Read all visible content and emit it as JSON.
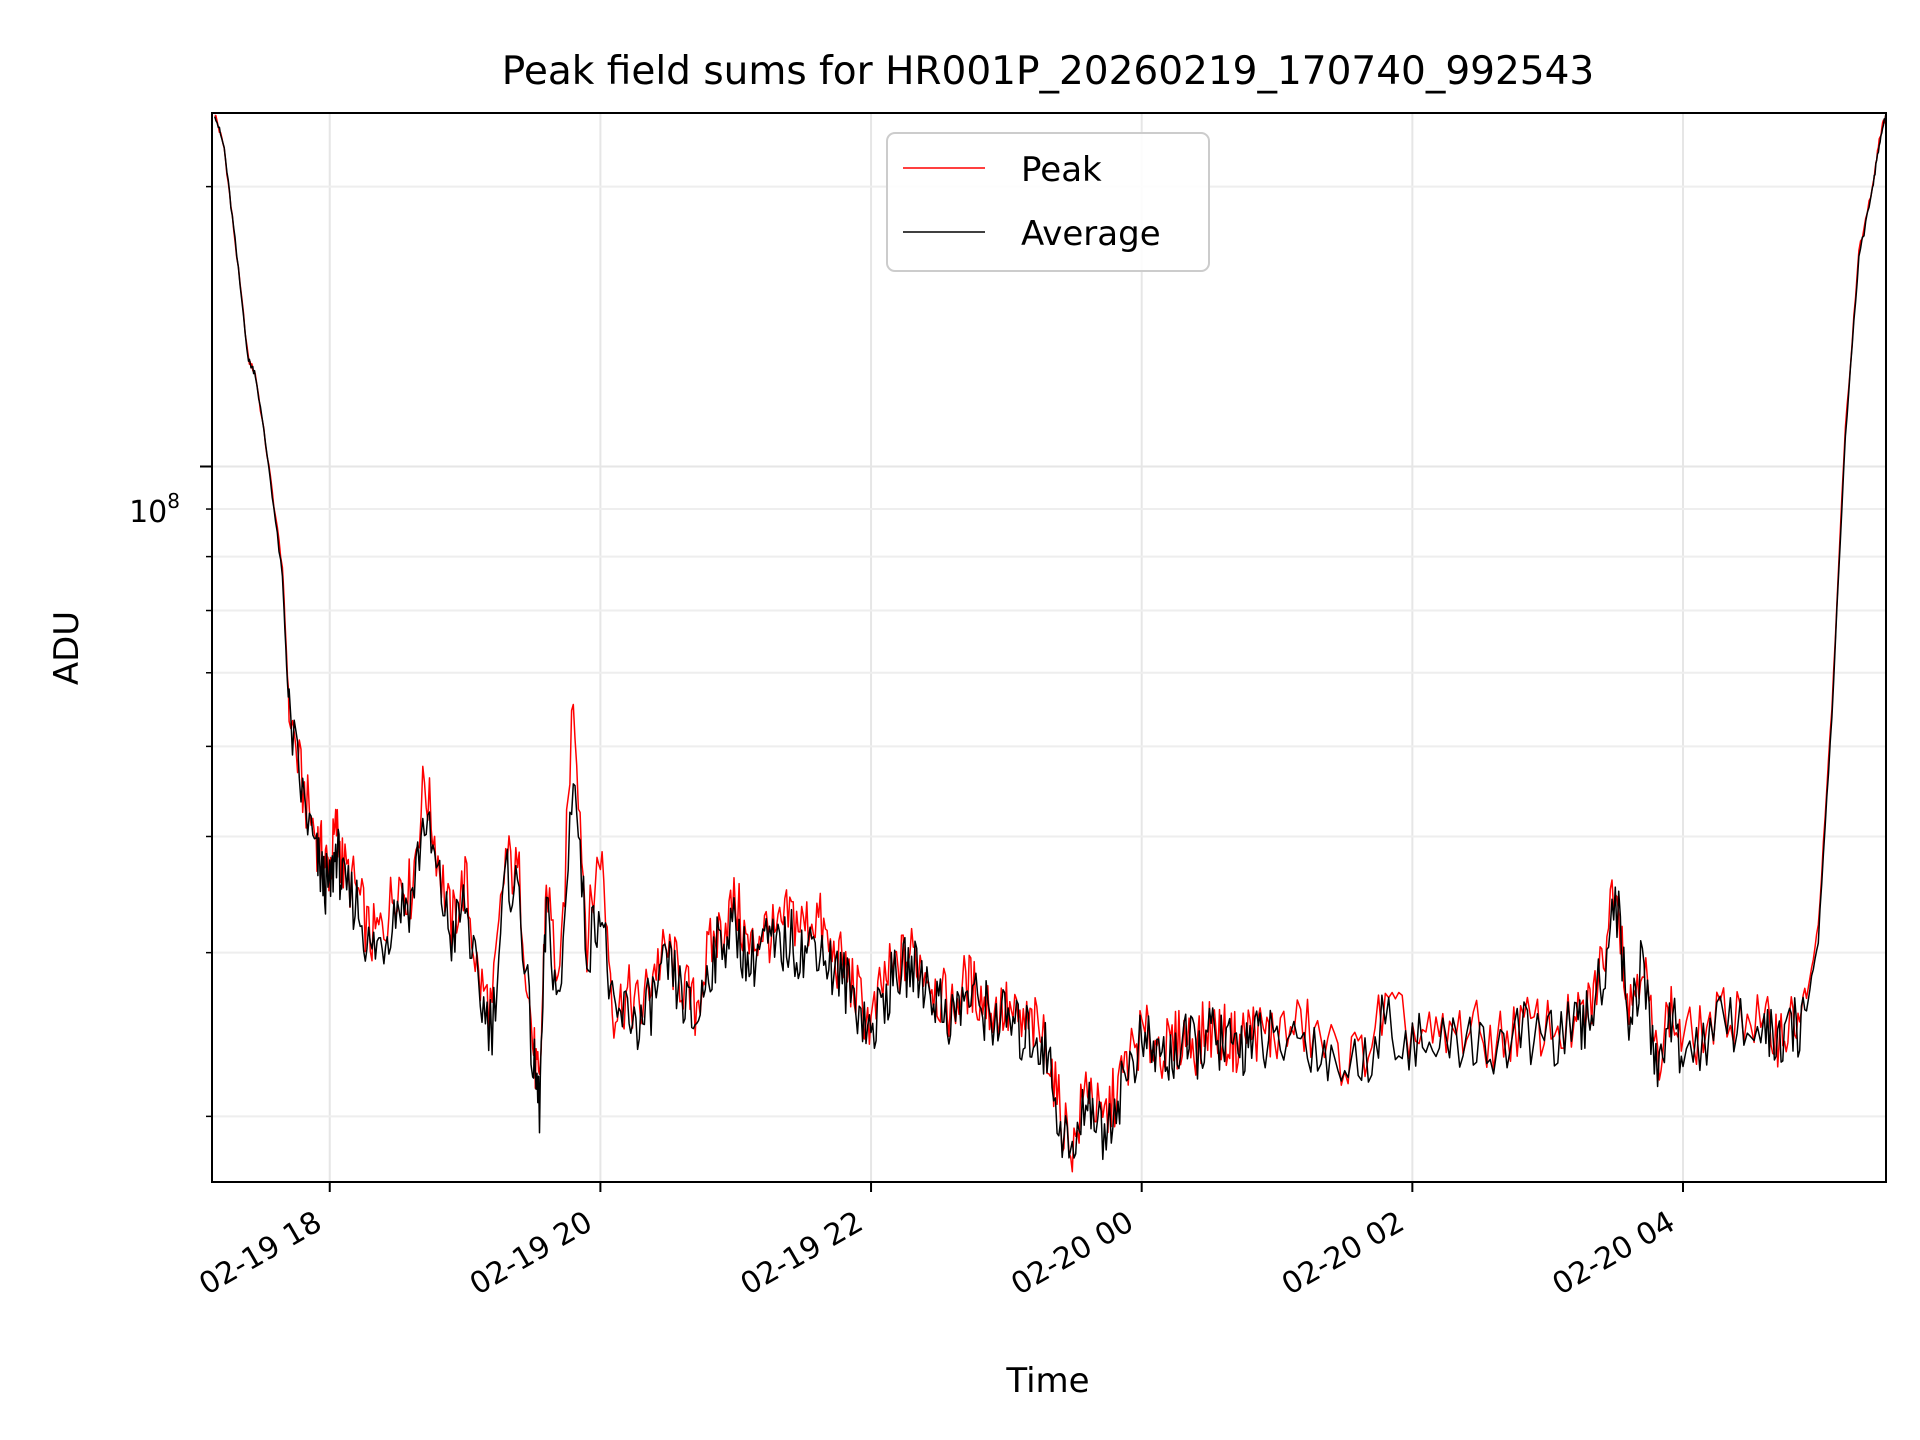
{
  "chart_data": {
    "type": "line",
    "title": "Peak field sums for HR001P_20260219_170740_992543",
    "xlabel": "Time",
    "ylabel": "ADU",
    "yscale": "log",
    "ylim": [
      17000000,
      240000000
    ],
    "xlim_hours": [
      -0.87,
      11.5
    ],
    "grid": true,
    "legend_position": "upper center",
    "x_tick_labels": [
      "02-19 18",
      "02-19 20",
      "02-19 22",
      "02-20 00",
      "02-20 02",
      "02-20 04"
    ],
    "x_tick_hours": [
      0,
      2,
      4,
      6,
      8,
      10
    ],
    "y_major_tick": {
      "value": 100000000,
      "label_base": "10",
      "label_exp": "8"
    },
    "y_minor_ticks": [
      20000000,
      30000000,
      40000000,
      50000000,
      60000000,
      70000000,
      80000000,
      90000000,
      200000000
    ],
    "series": [
      {
        "name": "Peak",
        "color": "#ff0000",
        "x_hours": [
          -0.85,
          -0.78,
          -0.7,
          -0.6,
          -0.55,
          -0.45,
          -0.35,
          -0.3,
          -0.2,
          -0.1,
          -0.05,
          0.0,
          0.05,
          0.1,
          0.2,
          0.3,
          0.4,
          0.5,
          0.6,
          0.7,
          0.8,
          0.9,
          1.0,
          1.1,
          1.2,
          1.3,
          1.4,
          1.5,
          1.55,
          1.6,
          1.7,
          1.8,
          1.9,
          2.0,
          2.1,
          2.2,
          2.3,
          2.4,
          2.5,
          2.6,
          2.7,
          2.8,
          2.9,
          3.0,
          3.1,
          3.2,
          3.3,
          3.4,
          3.5,
          3.6,
          3.7,
          3.8,
          3.9,
          4.0,
          4.1,
          4.2,
          4.3,
          4.4,
          4.5,
          4.6,
          4.7,
          4.8,
          4.9,
          5.0,
          5.1,
          5.2,
          5.3,
          5.4,
          5.5,
          5.6,
          5.7,
          5.8,
          5.9,
          6.0,
          6.1,
          6.2,
          6.3,
          6.4,
          6.5,
          6.6,
          6.7,
          6.8,
          6.9,
          7.0,
          7.2,
          7.4,
          7.6,
          7.8,
          8.0,
          8.2,
          8.4,
          8.6,
          8.8,
          9.0,
          9.2,
          9.3,
          9.4,
          9.5,
          9.6,
          9.7,
          9.8,
          9.9,
          10.0,
          10.2,
          10.4,
          10.6,
          10.7,
          10.8,
          10.9,
          11.0,
          11.1,
          11.2,
          11.3,
          11.4,
          11.45,
          11.5
        ],
        "values": [
          240000000,
          220000000,
          175000000,
          130000000,
          126000000,
          100000000,
          78000000,
          55000000,
          45000000,
          40000000,
          38000000,
          37000000,
          41000000,
          37000000,
          35000000,
          31000000,
          32000000,
          36000000,
          35000000,
          46000000,
          38000000,
          32000000,
          36000000,
          28000000,
          26000000,
          38000000,
          36000000,
          24000000,
          21000000,
          36000000,
          27000000,
          58000000,
          31000000,
          39000000,
          26000000,
          27000000,
          26000000,
          29000000,
          30000000,
          28000000,
          26000000,
          30000000,
          32000000,
          34000000,
          30000000,
          32000000,
          31000000,
          33000000,
          32000000,
          33000000,
          30000000,
          29000000,
          27000000,
          25000000,
          28000000,
          29000000,
          30000000,
          29000000,
          27000000,
          26000000,
          28000000,
          27000000,
          26000000,
          26000000,
          25000000,
          25000000,
          24000000,
          20000000,
          18500000,
          22000000,
          19500000,
          21000000,
          23000000,
          24500000,
          24000000,
          23500000,
          24500000,
          24000000,
          25000000,
          24500000,
          24000000,
          25000000,
          24500000,
          24500000,
          25000000,
          23500000,
          23000000,
          26000000,
          24500000,
          24000000,
          25000000,
          24000000,
          25000000,
          25000000,
          25000000,
          26000000,
          29000000,
          37000000,
          26000000,
          30000000,
          23000000,
          26000000,
          24000000,
          25000000,
          26000000,
          25000000,
          24500000,
          25000000,
          26000000,
          32000000,
          55000000,
          110000000,
          170000000,
          200000000,
          225000000,
          240000000
        ]
      },
      {
        "name": "Average",
        "color": "#000000",
        "x_hours": [
          -0.85,
          -0.78,
          -0.7,
          -0.6,
          -0.55,
          -0.45,
          -0.35,
          -0.3,
          -0.2,
          -0.1,
          -0.05,
          0.0,
          0.05,
          0.1,
          0.2,
          0.3,
          0.4,
          0.5,
          0.6,
          0.7,
          0.8,
          0.9,
          1.0,
          1.1,
          1.2,
          1.3,
          1.4,
          1.5,
          1.55,
          1.6,
          1.7,
          1.8,
          1.9,
          2.0,
          2.1,
          2.2,
          2.3,
          2.4,
          2.5,
          2.6,
          2.7,
          2.8,
          2.9,
          3.0,
          3.1,
          3.2,
          3.3,
          3.4,
          3.5,
          3.6,
          3.7,
          3.8,
          3.9,
          4.0,
          4.1,
          4.2,
          4.3,
          4.4,
          4.5,
          4.6,
          4.7,
          4.8,
          4.9,
          5.0,
          5.1,
          5.2,
          5.3,
          5.4,
          5.5,
          5.6,
          5.7,
          5.8,
          5.9,
          6.0,
          6.1,
          6.2,
          6.3,
          6.4,
          6.5,
          6.6,
          6.7,
          6.8,
          6.9,
          7.0,
          7.2,
          7.4,
          7.6,
          7.8,
          8.0,
          8.2,
          8.4,
          8.6,
          8.8,
          9.0,
          9.2,
          9.3,
          9.4,
          9.5,
          9.6,
          9.7,
          9.8,
          9.9,
          10.0,
          10.2,
          10.4,
          10.6,
          10.7,
          10.8,
          10.9,
          11.0,
          11.1,
          11.2,
          11.3,
          11.4,
          11.45,
          11.5
        ],
        "values": [
          240000000,
          220000000,
          175000000,
          130000000,
          126000000,
          100000000,
          76000000,
          54000000,
          44000000,
          38000000,
          36000000,
          35000000,
          39000000,
          35000000,
          34000000,
          30000000,
          31000000,
          34000000,
          34000000,
          42000000,
          36000000,
          31000000,
          34000000,
          27000000,
          25000000,
          36000000,
          35000000,
          23000000,
          20500000,
          33000000,
          26000000,
          48000000,
          30000000,
          34000000,
          25000000,
          26000000,
          25000000,
          27000000,
          29000000,
          27000000,
          25000000,
          29000000,
          31000000,
          32000000,
          29000000,
          31000000,
          30000000,
          31000000,
          30000000,
          31000000,
          29000000,
          28000000,
          26500000,
          24500000,
          27000000,
          28500000,
          29000000,
          28000000,
          26500000,
          25500000,
          27000000,
          26500000,
          25500000,
          25500000,
          24500000,
          24500000,
          23500000,
          19500000,
          18000000,
          21500000,
          19000000,
          20500000,
          22500000,
          24000000,
          23500000,
          23000000,
          24000000,
          23500000,
          24500000,
          24000000,
          23500000,
          24500000,
          24000000,
          24000000,
          24500000,
          23000000,
          22500000,
          25500000,
          24000000,
          23500000,
          24500000,
          23500000,
          24500000,
          24500000,
          24500000,
          25500000,
          28000000,
          35000000,
          25500000,
          29000000,
          22500000,
          25500000,
          23500000,
          24500000,
          25500000,
          24500000,
          24000000,
          24500000,
          25500000,
          31000000,
          54000000,
          108000000,
          168000000,
          198000000,
          223000000,
          240000000
        ]
      }
    ]
  }
}
